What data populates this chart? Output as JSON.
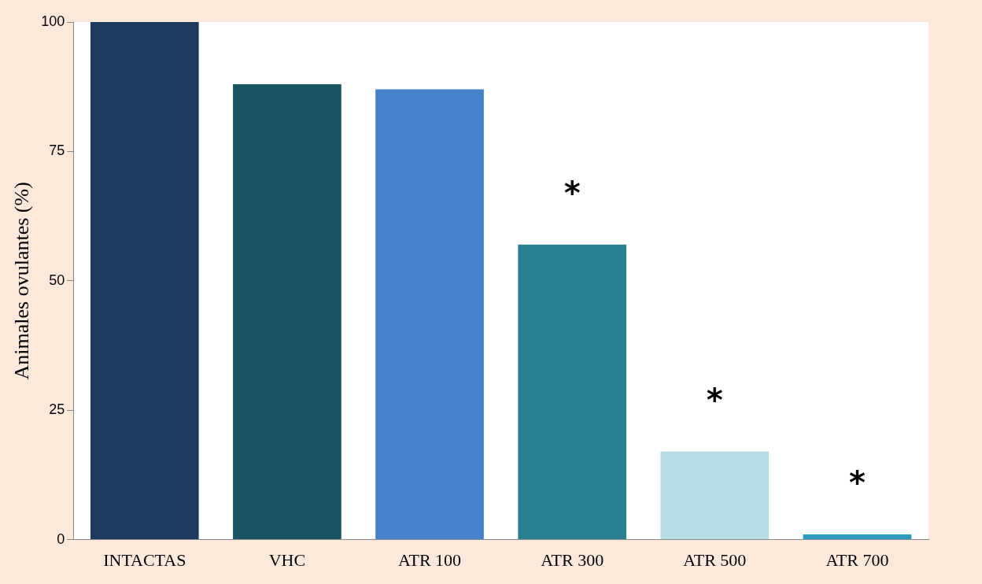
{
  "chart_data": {
    "type": "bar",
    "ylabel": "Animales ovulantes (%)",
    "categories": [
      "INTACTAS",
      "VHC",
      "ATR 100",
      "ATR 300",
      "ATR 500",
      "ATR 700"
    ],
    "values": [
      100,
      88,
      87,
      57,
      17,
      1
    ],
    "colors": [
      "#1f3a5f",
      "#1a5462",
      "#4682cc",
      "#288090",
      "#b6dde6",
      "#2a9cc0"
    ],
    "ylim": [
      0,
      100
    ],
    "yticks": [
      0,
      25,
      50,
      75,
      100
    ],
    "grid": false,
    "legend": false,
    "annotations": [
      {
        "text": "*",
        "x": "ATR 300",
        "y": 57
      },
      {
        "text": "*",
        "x": "ATR 500",
        "y": 17
      },
      {
        "text": "*",
        "x": "ATR 700",
        "y": 1
      }
    ]
  }
}
